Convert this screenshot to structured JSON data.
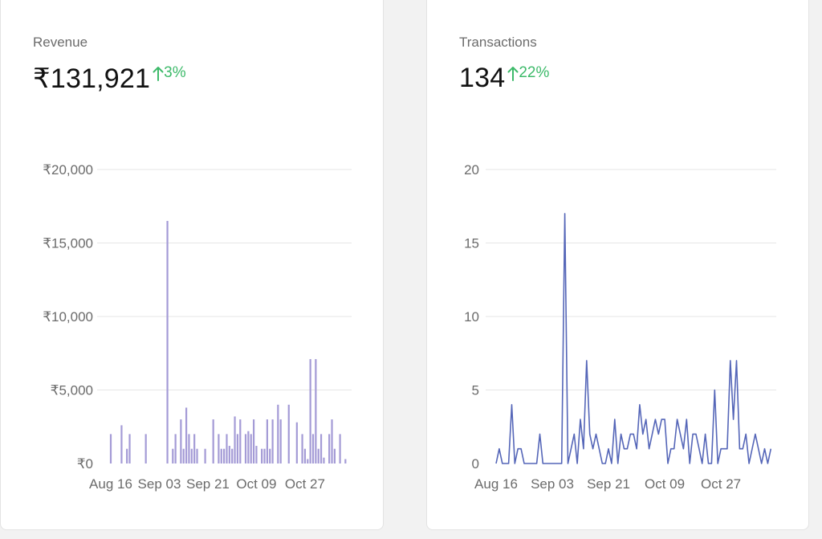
{
  "revenue": {
    "label": "Revenue",
    "value": "₹131,921",
    "delta": "3%"
  },
  "transactions": {
    "label": "Transactions",
    "value": "134",
    "delta": "22%"
  },
  "colors": {
    "revenue_bar": "#a49bd6",
    "transactions_line": "#5566b8",
    "positive": "#3dba6a"
  },
  "chart_data": [
    {
      "type": "bar",
      "title": "Revenue",
      "xlabel": "",
      "ylabel": "",
      "x_tick_labels": [
        "Aug 16",
        "Sep 03",
        "Sep 21",
        "Oct 09",
        "Oct 27"
      ],
      "x_tick_positions": [
        0,
        18,
        36,
        54,
        72
      ],
      "y_tick_labels": [
        "₹0",
        "₹5,000",
        "₹10,000",
        "₹15,000",
        "₹20,000"
      ],
      "y_ticks": [
        0,
        5000,
        10000,
        15000,
        20000
      ],
      "ylim": [
        0,
        20000
      ],
      "x_range": [
        0,
        90
      ],
      "grid": true,
      "values": [
        [
          0,
          2000
        ],
        [
          4,
          2600
        ],
        [
          6,
          1000
        ],
        [
          7,
          2000
        ],
        [
          13,
          2000
        ],
        [
          21,
          16500
        ],
        [
          23,
          1000
        ],
        [
          24,
          2000
        ],
        [
          26,
          3000
        ],
        [
          27,
          1000
        ],
        [
          28,
          3800
        ],
        [
          29,
          2000
        ],
        [
          30,
          1000
        ],
        [
          31,
          2000
        ],
        [
          32,
          1000
        ],
        [
          35,
          1000
        ],
        [
          38,
          3000
        ],
        [
          40,
          2000
        ],
        [
          41,
          1000
        ],
        [
          42,
          1000
        ],
        [
          43,
          2000
        ],
        [
          44,
          1200
        ],
        [
          45,
          1000
        ],
        [
          46,
          3200
        ],
        [
          47,
          2000
        ],
        [
          48,
          3000
        ],
        [
          50,
          2000
        ],
        [
          51,
          2200
        ],
        [
          52,
          2000
        ],
        [
          53,
          3000
        ],
        [
          54,
          1200
        ],
        [
          56,
          1000
        ],
        [
          57,
          1000
        ],
        [
          58,
          3000
        ],
        [
          59,
          1000
        ],
        [
          60,
          3000
        ],
        [
          62,
          4000
        ],
        [
          63,
          3000
        ],
        [
          66,
          4000
        ],
        [
          69,
          2800
        ],
        [
          71,
          2000
        ],
        [
          72,
          1000
        ],
        [
          73,
          300
        ],
        [
          74,
          7100
        ],
        [
          75,
          2000
        ],
        [
          76,
          7100
        ],
        [
          77,
          1000
        ],
        [
          78,
          2000
        ],
        [
          79,
          400
        ],
        [
          81,
          2000
        ],
        [
          82,
          3000
        ],
        [
          83,
          1000
        ],
        [
          85,
          2000
        ],
        [
          87,
          300
        ]
      ]
    },
    {
      "type": "line",
      "title": "Transactions",
      "xlabel": "",
      "ylabel": "",
      "x_tick_labels": [
        "Aug 16",
        "Sep 03",
        "Sep 21",
        "Oct 09",
        "Oct 27"
      ],
      "x_tick_positions": [
        0,
        18,
        36,
        54,
        72
      ],
      "y_tick_labels": [
        "0",
        "5",
        "10",
        "15",
        "20"
      ],
      "y_ticks": [
        0,
        5,
        10,
        15,
        20
      ],
      "ylim": [
        0,
        20
      ],
      "x_range": [
        0,
        90
      ],
      "grid": true,
      "values": [
        0,
        1,
        0,
        0,
        0,
        4,
        0,
        1,
        1,
        0,
        0,
        0,
        0,
        0,
        2,
        0,
        0,
        0,
        0,
        0,
        0,
        0,
        17,
        0,
        1,
        2,
        0,
        3,
        1,
        7,
        2,
        1,
        2,
        1,
        0,
        0,
        1,
        0,
        3,
        0,
        2,
        1,
        1,
        2,
        2,
        1,
        4,
        2,
        3,
        1,
        2,
        3,
        2,
        3,
        3,
        0,
        1,
        1,
        3,
        2,
        1,
        3,
        0,
        2,
        2,
        1,
        0,
        2,
        0,
        0,
        5,
        0,
        1,
        1,
        1,
        7,
        3,
        7,
        1,
        1,
        2,
        0,
        1,
        2,
        1,
        0,
        1,
        0,
        1
      ]
    }
  ]
}
